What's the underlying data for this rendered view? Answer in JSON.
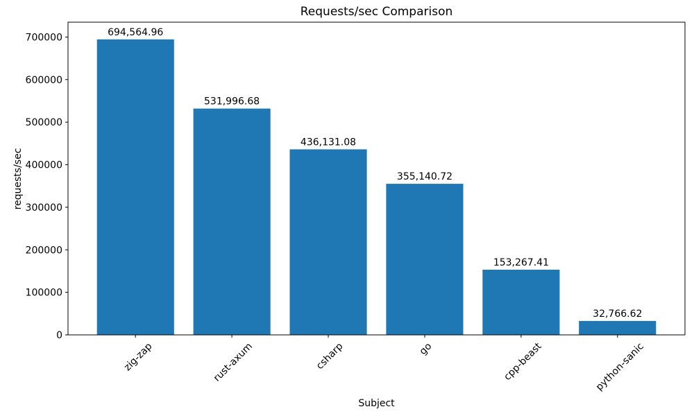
{
  "chart_data": {
    "type": "bar",
    "title": "Requests/sec Comparison",
    "xlabel": "Subject",
    "ylabel": "requests/sec",
    "categories": [
      "zig-zap",
      "rust-axum",
      "csharp",
      "go",
      "cpp-beast",
      "python-sanic"
    ],
    "values": [
      694564.96,
      531996.68,
      436131.08,
      355140.72,
      153267.41,
      32766.62
    ],
    "bar_labels": [
      "694,564.96",
      "531,996.68",
      "436,131.08",
      "355,140.72",
      "153,267.41",
      "32,766.62"
    ],
    "ytick_values": [
      0,
      100000,
      200000,
      300000,
      400000,
      500000,
      600000,
      700000
    ],
    "ytick_labels": [
      "0",
      "100000",
      "200000",
      "300000",
      "400000",
      "500000",
      "600000",
      "700000"
    ],
    "ylim": [
      0,
      735000
    ],
    "xtick_rotation_deg": 45,
    "grid": false,
    "bar_color": "#1f77b4",
    "axis_color": "#000000",
    "text_color": "#000000",
    "background_color": "#ffffff"
  }
}
